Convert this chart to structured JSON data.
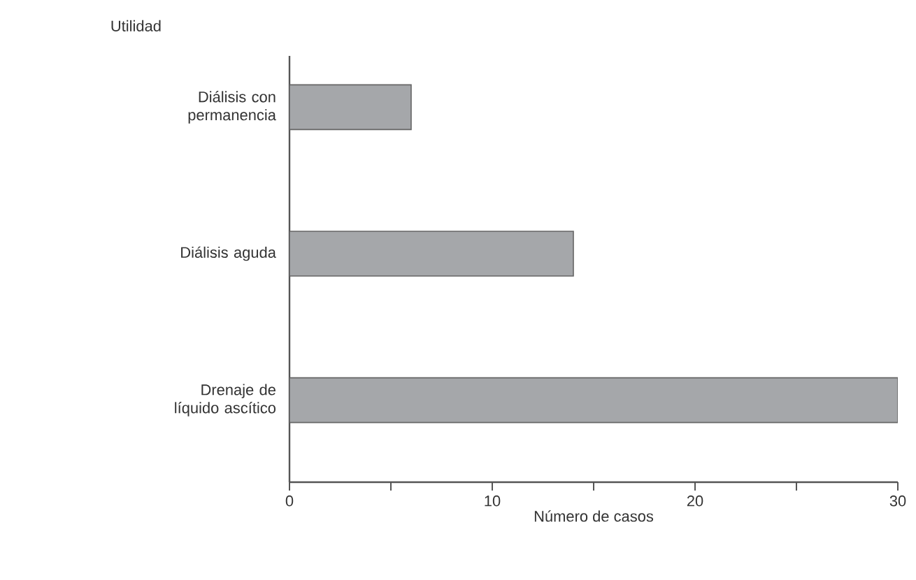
{
  "chart_data": {
    "type": "bar",
    "orientation": "horizontal",
    "ylabel": "Utilidad",
    "xlabel": "Número de casos",
    "categories": [
      "Diálisis con permanencia",
      "Diálisis aguda",
      "Drenaje de líquido ascítico"
    ],
    "values": [
      6,
      14,
      30
    ],
    "color": "#a5a7aa",
    "xlim": [
      0,
      30
    ],
    "xticks": [
      0,
      {
        "value": 5,
        "label": null
      },
      10,
      {
        "value": 15,
        "label": null
      },
      20,
      {
        "value": 25,
        "label": null
      },
      30
    ]
  }
}
